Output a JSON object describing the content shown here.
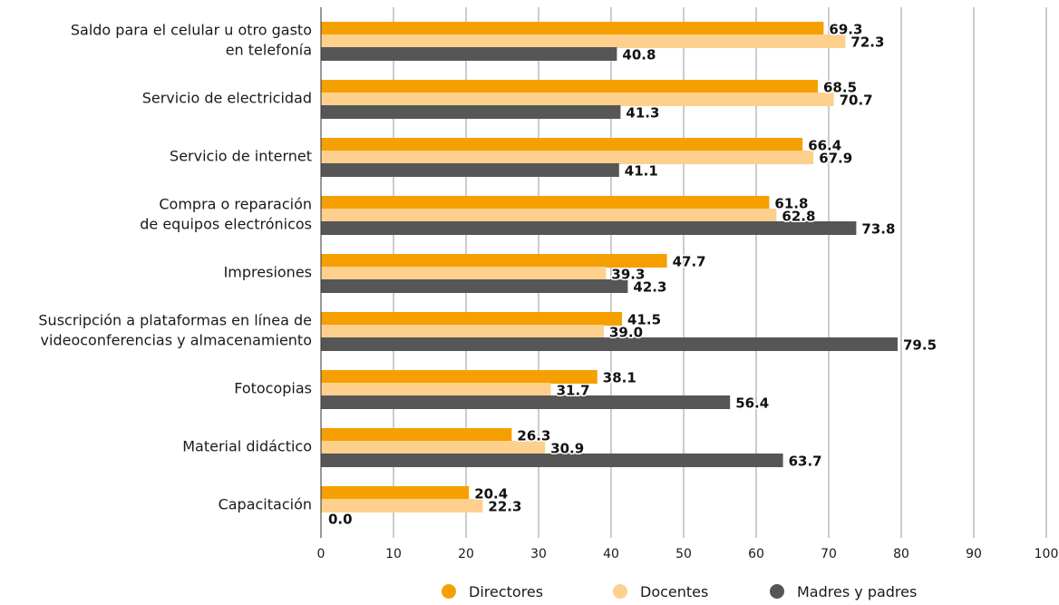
{
  "chart_data": {
    "type": "bar",
    "orientation": "horizontal",
    "categories": [
      [
        "Saldo para el celular u otro gasto",
        "en telefonía"
      ],
      [
        "Servicio de electricidad"
      ],
      [
        "Servicio de internet"
      ],
      [
        "Compra o reparación",
        "de equipos electrónicos"
      ],
      [
        "Impresiones"
      ],
      [
        "Suscripción a plataformas en línea de",
        "videoconferencias y almacenamiento"
      ],
      [
        "Fotocopias"
      ],
      [
        "Material didáctico"
      ],
      [
        "Capacitación"
      ]
    ],
    "series": [
      {
        "name": "Directores",
        "color": "#f5a000",
        "values": [
          69.3,
          68.5,
          66.4,
          61.8,
          47.7,
          41.5,
          38.1,
          26.3,
          20.4
        ],
        "labels": [
          "69.3",
          "68.5",
          "66.4",
          "61.8",
          "47.7",
          "41.5",
          "38.1",
          "26.3",
          "20.4"
        ]
      },
      {
        "name": "Docentes",
        "color": "#fdd08e",
        "values": [
          72.3,
          70.7,
          67.9,
          62.8,
          39.3,
          39.0,
          31.7,
          30.9,
          22.3
        ],
        "labels": [
          "72.3",
          "70.7",
          "67.9",
          "62.8",
          "39.3",
          "39.0",
          "31.7",
          "30.9",
          "22.3"
        ]
      },
      {
        "name": "Madres y padres",
        "color": "#565656",
        "values": [
          40.8,
          41.3,
          41.1,
          73.8,
          42.3,
          79.5,
          56.4,
          63.7,
          0.0
        ],
        "labels": [
          "40.8",
          "41.3",
          "41.1",
          "73.8",
          "42.3",
          "79.5",
          "56.4",
          "63.7",
          "0.0"
        ]
      }
    ],
    "xlim": [
      0,
      100
    ],
    "xticks": [
      "0",
      "10",
      "20",
      "30",
      "40",
      "50",
      "60",
      "70",
      "80",
      "90",
      "100"
    ],
    "grid": "vertical",
    "legend_position": "bottom-center",
    "title": "",
    "xlabel": "",
    "ylabel": ""
  }
}
